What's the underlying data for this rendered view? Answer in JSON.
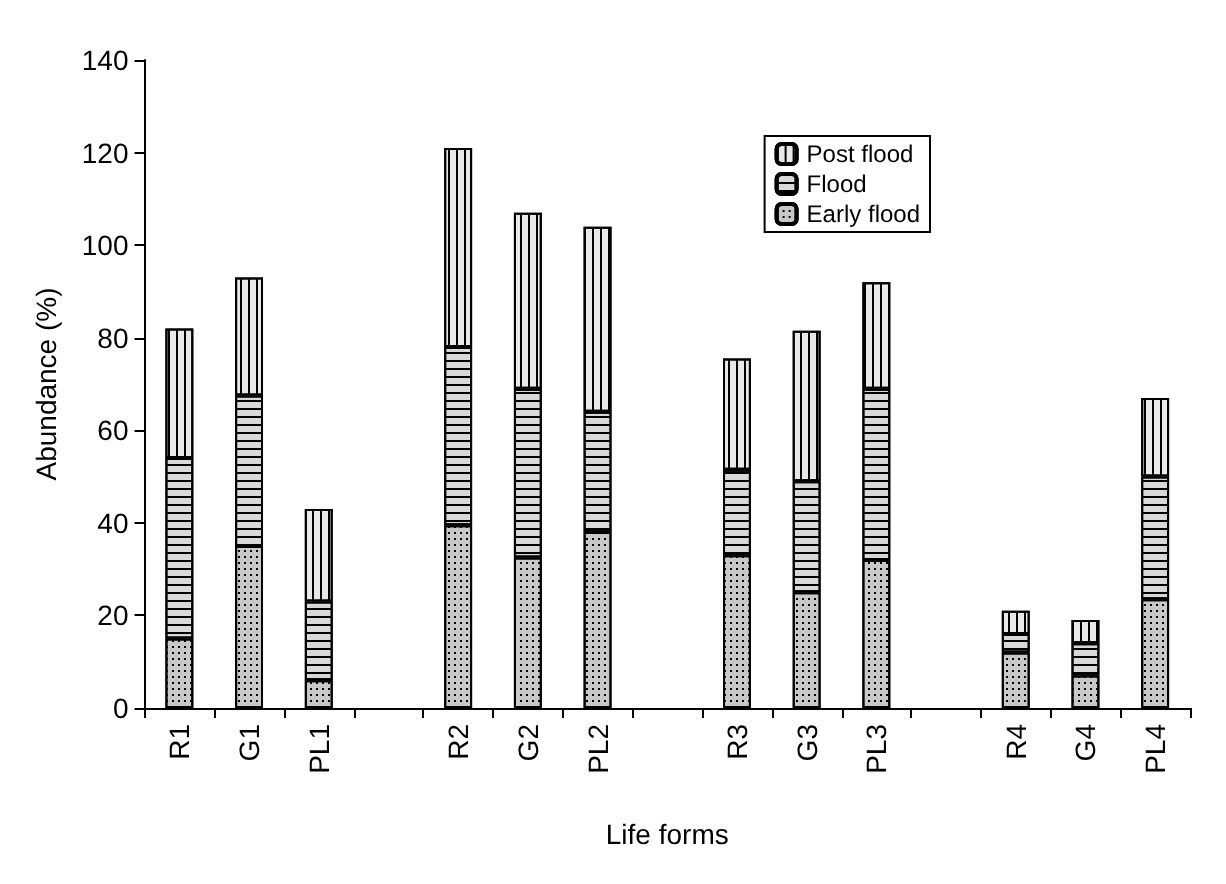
{
  "chart_data": {
    "type": "bar",
    "stacked": true,
    "xlabel": "Life forms",
    "ylabel": "Abundance (%)",
    "categories": [
      "R1",
      "G1",
      "PL1",
      null,
      "R2",
      "G2",
      "PL2",
      null,
      "R3",
      "G3",
      "PL3",
      null,
      "R4",
      "G4",
      "PL4"
    ],
    "series": [
      {
        "name": "Early flood",
        "color": "#c8c8c8",
        "values": [
          15,
          35,
          6,
          null,
          39.5,
          32.5,
          38,
          null,
          33,
          25,
          32,
          null,
          12,
          7,
          23.5
        ]
      },
      {
        "name": "Flood",
        "color": "#d8d8d8",
        "values": [
          39,
          32.5,
          17,
          null,
          38.5,
          36.5,
          26,
          null,
          18.5,
          24,
          37,
          null,
          4,
          7,
          26.5
        ]
      },
      {
        "name": "Post flood",
        "color": "#e8e8e8",
        "values": [
          28,
          25.5,
          20,
          null,
          43,
          38,
          40,
          null,
          24,
          32.5,
          23,
          null,
          5,
          5,
          17
        ]
      }
    ],
    "ylim": [
      0,
      140
    ],
    "yticks": [
      0,
      20,
      40,
      60,
      80,
      100,
      120,
      140
    ],
    "grid": false,
    "legend": "top right"
  }
}
